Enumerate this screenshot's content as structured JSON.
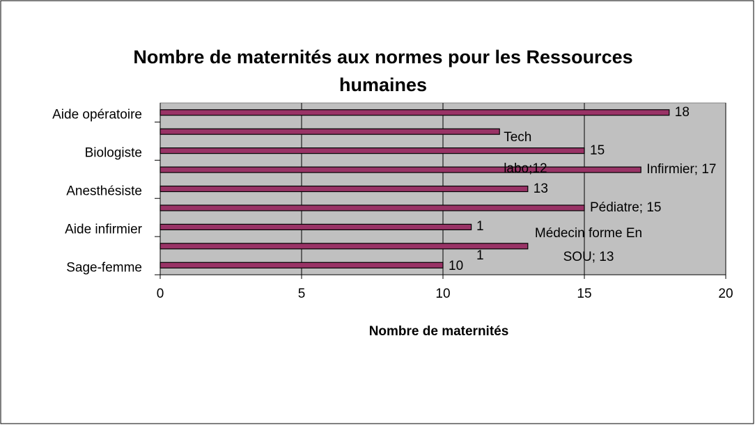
{
  "chart_data": {
    "type": "hbar",
    "title": "Nombre de maternités aux normes pour les Ressources humaines",
    "x_label": "Nombre de maternités",
    "categories": [
      "Aide opératoire",
      null,
      "Biologiste",
      null,
      "Anesthésiste",
      null,
      "Aide infirmier",
      null,
      "Sage-femme"
    ],
    "values": [
      18,
      12,
      15,
      17,
      13,
      15,
      11,
      13,
      10
    ],
    "value_labels": [
      "18",
      "Tech labo;12",
      "15",
      "Infirmier; 17",
      "13",
      "Pédiatre; 15",
      null,
      "Médecin forme En SOU; 13",
      "10"
    ],
    "annotations": [
      "1",
      "1"
    ],
    "color": "#993366",
    "xlim": [
      0,
      20
    ],
    "xticks": [
      0,
      5,
      10,
      15,
      20
    ],
    "grid": true
  }
}
